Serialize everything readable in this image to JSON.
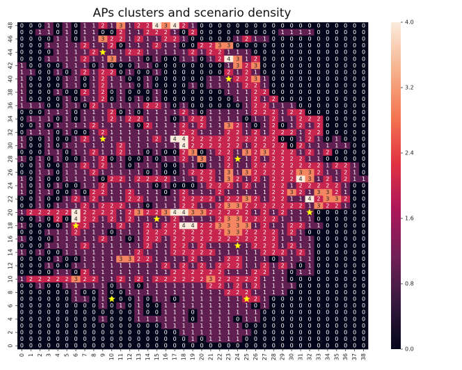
{
  "chart_data": {
    "type": "heatmap",
    "title": "APs clusters and scenario density",
    "xlabel": "",
    "ylabel": "",
    "x_tick_labels": [
      "0",
      "1",
      "2",
      "3",
      "4",
      "5",
      "6",
      "7",
      "8",
      "9",
      "10",
      "11",
      "12",
      "13",
      "14",
      "15",
      "16",
      "17",
      "18",
      "19",
      "20",
      "21",
      "22",
      "23",
      "24",
      "25",
      "26",
      "27",
      "28",
      "29",
      "30",
      "31",
      "32",
      "33",
      "34",
      "35",
      "36",
      "37",
      "38"
    ],
    "y_tick_labels": [
      "48",
      "46",
      "44",
      "42",
      "40",
      "38",
      "36",
      "34",
      "32",
      "30",
      "28",
      "26",
      "24",
      "22",
      "20",
      "18",
      "16",
      "14",
      "12",
      "10",
      "8",
      "6",
      "4",
      "2",
      "0"
    ],
    "x_tick_values": [
      0,
      1,
      2,
      3,
      4,
      5,
      6,
      7,
      8,
      9,
      10,
      11,
      12,
      13,
      14,
      15,
      16,
      17,
      18,
      19,
      20,
      21,
      22,
      23,
      24,
      25,
      26,
      27,
      28,
      29,
      30,
      31,
      32,
      33,
      34,
      35,
      36,
      37,
      38
    ],
    "y_tick_values": [
      48,
      46,
      44,
      42,
      40,
      38,
      36,
      34,
      32,
      30,
      28,
      26,
      24,
      22,
      20,
      18,
      16,
      14,
      12,
      10,
      8,
      6,
      4,
      2,
      0
    ],
    "colorbar": {
      "ticks": [
        "0.0",
        "0.8",
        "1.6",
        "2.4",
        "3.2",
        "4.0"
      ],
      "min": 0,
      "max": 4
    },
    "value_range": [
      0,
      4
    ],
    "rows_top_to_bottom": [
      "000101011213122434210000000000000000000000",
      "001101011002112221020000000001111000000000",
      "000011011322121122100000121100000000000000",
      "000111121120111211002233000000000000000000",
      "000011112111221111121221110000000000000000",
      "000111121131110100110124312000000000000000",
      "100001110100011000000001323000000000000000",
      "110010121220100100000002121000000000000000",
      "100001101211001000000111223100000000000000",
      "100001101211101000010111122100000000000000",
      "100010021201000100000001112200000000000000",
      "100001011201010100000000112120000000000000",
      "111001102111112210100000012211100000000000",
      "000111011120101111210111112221220000000000",
      "011101011121221110122111101121122200000000",
      "001011112111102111212113210120121200000000",
      "011101001211111111221112212122212200000000",
      "100100121111111214422222222220012101000000",
      "100101111112111111422222212222021111100000",
      "000110112112110100230122132322212120000000",
      "101010011201001011213112112122221100000000",
      "001001121211011100110112112222222212210000",
      "001101112111110100122213132222233211210000",
      "101001111022122221112213212122243121211000",
      "101010011211111010001222121122122222100000",
      "101100102211211101211121111122321332100000",
      "001001212111221111222212232122114233200000",
      "001011121222110111221123322222221322100000",
      "122222422221232234433222221212111000000000",
      "001020422121211112111123322221111000000000",
      "100001221112112122442233331211221100000000",
      "000111211101112222222223322221210000000000",
      "100011111211012212222222222221111000000000",
      "000111121111112112212111112221211000000000",
      "101001111111121112222211111222121000000000",
      "000010011113322111121112211101111000000000",
      "000100111111111121212122211212101000000000",
      "000011021111111112222221112211011000000000",
      "122222322112121222222322222111000000000000",
      "001001111101101111111221212111100000000000",
      "000000100100111111111112221111000000000000",
      "000000110100010110111111122100000000000000",
      "000000000101010011111111110100000000000000",
      "000000000000010011101111111000000000000000",
      "000000000100011111101111011000000000000000",
      "000000000000000011111111100000000000000000",
      "000000000000000000111111110000000000000000",
      "000000000000000000010111100000000000000000",
      "000000000000000000000000000000000000000000"
    ],
    "star_markers": [
      {
        "x": 9,
        "y": 44
      },
      {
        "x": 23,
        "y": 40
      },
      {
        "x": 9,
        "y": 31
      },
      {
        "x": 24,
        "y": 28
      },
      {
        "x": 32,
        "y": 20
      },
      {
        "x": 15,
        "y": 19
      },
      {
        "x": 6,
        "y": 18
      },
      {
        "x": 24,
        "y": 15
      },
      {
        "x": 10,
        "y": 7
      },
      {
        "x": 25,
        "y": 7
      }
    ],
    "colors": {
      "scale": [
        "#03051a",
        "#35193e",
        "#701f57",
        "#ad1759",
        "#e13342",
        "#f37651",
        "#f6b48f",
        "#faebdd"
      ],
      "star": "#ffff00"
    }
  }
}
